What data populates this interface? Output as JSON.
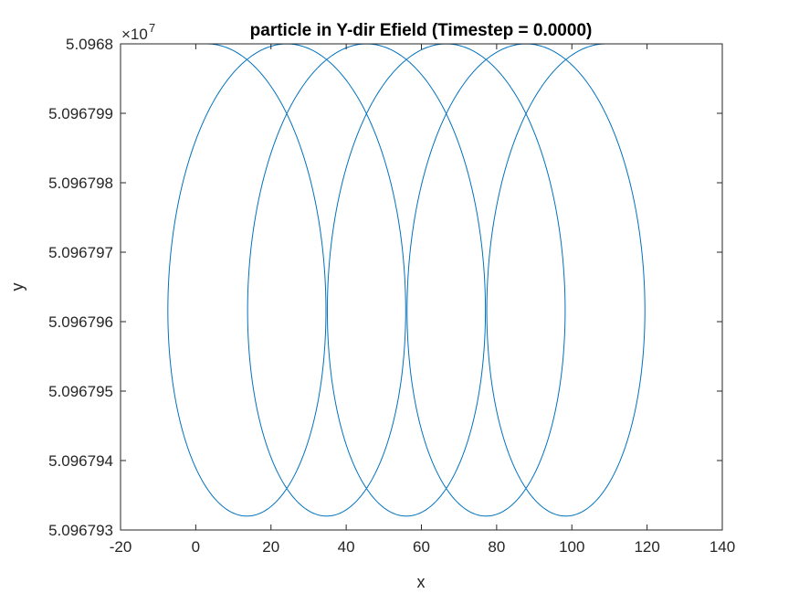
{
  "chart_data": {
    "type": "line",
    "title": "particle in Y-dir Efield (Timestep = 0.0000)",
    "xlabel": "x",
    "ylabel": "y",
    "xlim": [
      -20,
      140
    ],
    "ylim": [
      5.096793,
      5.0968
    ],
    "xticks": [
      -20,
      0,
      20,
      40,
      60,
      80,
      100,
      120,
      140
    ],
    "xtick_labels": [
      "-20",
      "0",
      "20",
      "40",
      "60",
      "80",
      "100",
      "120",
      "140"
    ],
    "yticks": [
      5.096793,
      5.096794,
      5.096795,
      5.096796,
      5.096797,
      5.096798,
      5.096799,
      5.0968
    ],
    "ytick_labels": [
      "5.096793",
      "5.096794",
      "5.096795",
      "5.096796",
      "5.096797",
      "5.096798",
      "5.096799",
      "5.0968"
    ],
    "y_exponent_base": "×10",
    "y_exponent_power": "7",
    "grid": false,
    "legend": "none",
    "line_color": "#0072bd",
    "series": [
      {
        "kind": "trochoid",
        "x_center_start": 3,
        "x_drift_per_loop": 21.2,
        "x_semi_axis": 26.1,
        "y_center": 5.0967966,
        "y_semi_axis": 3.4e-06,
        "loops": 5
      }
    ]
  }
}
